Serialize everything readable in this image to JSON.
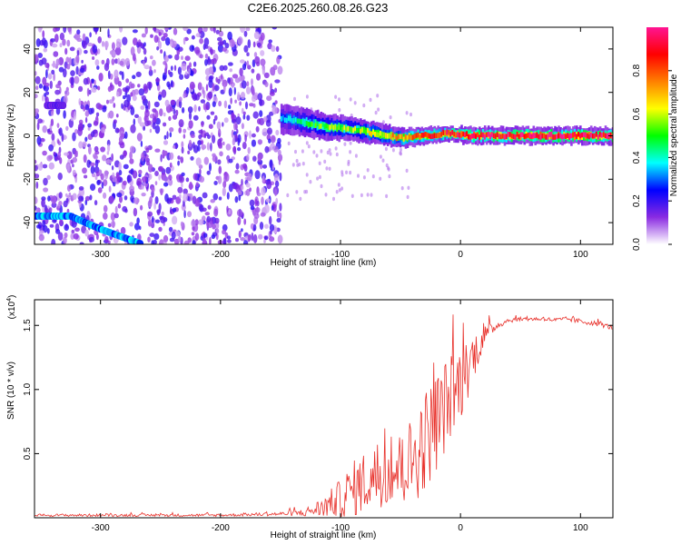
{
  "title": "C2E6.2025.260.08.26.G23",
  "chart_data": [
    {
      "type": "heatmap",
      "xlabel": "Height of straight line (km)",
      "ylabel": "Frequency (Hz)",
      "xlim": [
        -355,
        127
      ],
      "ylim": [
        -50,
        50
      ],
      "x_ticks": [
        -300,
        -200,
        -100,
        0,
        100
      ],
      "y_ticks": [
        -40,
        -20,
        0,
        20,
        40
      ],
      "colorbar": {
        "label": "Normalized spectral amplitude",
        "range": [
          0.0,
          1.0
        ],
        "ticks": [
          "0.0",
          "0.2",
          "0.4",
          "0.6",
          "0.8"
        ],
        "colors": [
          "#ffffff",
          "#8a2be2",
          "#0000ff",
          "#00ffff",
          "#00ff00",
          "#ffff00",
          "#ff8000",
          "#ff0000",
          "#ff1493"
        ]
      },
      "noise_region": {
        "x": [
          -355,
          -150
        ],
        "y": [
          -50,
          50
        ],
        "level": 0.12
      },
      "track": [
        {
          "x": -150,
          "y": 8,
          "amp": 0.35
        },
        {
          "x": -130,
          "y": 6,
          "amp": 0.45
        },
        {
          "x": -110,
          "y": 4,
          "amp": 0.55
        },
        {
          "x": -90,
          "y": 3,
          "amp": 0.55
        },
        {
          "x": -70,
          "y": 1,
          "amp": 0.65
        },
        {
          "x": -50,
          "y": -1,
          "amp": 0.7
        },
        {
          "x": -30,
          "y": 0,
          "amp": 0.8
        },
        {
          "x": -10,
          "y": 1,
          "amp": 0.85
        },
        {
          "x": 10,
          "y": 0,
          "amp": 0.9
        },
        {
          "x": 40,
          "y": 0,
          "amp": 0.95
        },
        {
          "x": 80,
          "y": 0,
          "amp": 0.95
        },
        {
          "x": 127,
          "y": 0,
          "amp": 0.95
        }
      ],
      "secondary_tracks": [
        {
          "points": [
            {
              "x": -355,
              "y": -37
            },
            {
              "x": -325,
              "y": -37
            },
            {
              "x": -300,
              "y": -43
            },
            {
              "x": -265,
              "y": -50
            }
          ],
          "amp": 0.3
        },
        {
          "points": [
            {
              "x": -345,
              "y": 14
            },
            {
              "x": -330,
              "y": 14
            }
          ],
          "amp": 0.15
        }
      ]
    },
    {
      "type": "line",
      "xlabel": "Height of straight line (km)",
      "ylabel": "SNR (10 * v/v)",
      "y_multiplier": "(x10",
      "y_multiplier_exp": "4",
      "y_multiplier_close": ")",
      "xlim": [
        -355,
        127
      ],
      "ylim": [
        0,
        1.7
      ],
      "x_ticks": [
        -300,
        -200,
        -100,
        0,
        100
      ],
      "y_ticks": [
        0.5,
        1.0,
        1.5
      ],
      "line_color": "#e8302a",
      "series": [
        {
          "x": [
            -355,
            -300,
            -250,
            -200,
            -150,
            -130,
            -115,
            -100,
            -90,
            -80,
            -70,
            -60,
            -50,
            -40,
            -30,
            -20,
            -10,
            0,
            10,
            20,
            30,
            40,
            50,
            60,
            70,
            80,
            90,
            100,
            110,
            120,
            127
          ],
          "y": [
            0.02,
            0.02,
            0.02,
            0.02,
            0.03,
            0.04,
            0.08,
            0.15,
            0.22,
            0.28,
            0.32,
            0.35,
            0.38,
            0.45,
            0.6,
            0.75,
            0.92,
            1.05,
            1.25,
            1.42,
            1.5,
            1.54,
            1.55,
            1.55,
            1.55,
            1.54,
            1.55,
            1.53,
            1.52,
            1.5,
            1.48
          ],
          "jitter": [
            0.01,
            0.01,
            0.01,
            0.01,
            0.015,
            0.03,
            0.08,
            0.15,
            0.22,
            0.25,
            0.25,
            0.25,
            0.3,
            0.35,
            0.4,
            0.4,
            0.35,
            0.3,
            0.2,
            0.08,
            0.03,
            0.02,
            0.015,
            0.015,
            0.015,
            0.02,
            0.02,
            0.02,
            0.02,
            0.02,
            0.02
          ]
        }
      ]
    }
  ]
}
